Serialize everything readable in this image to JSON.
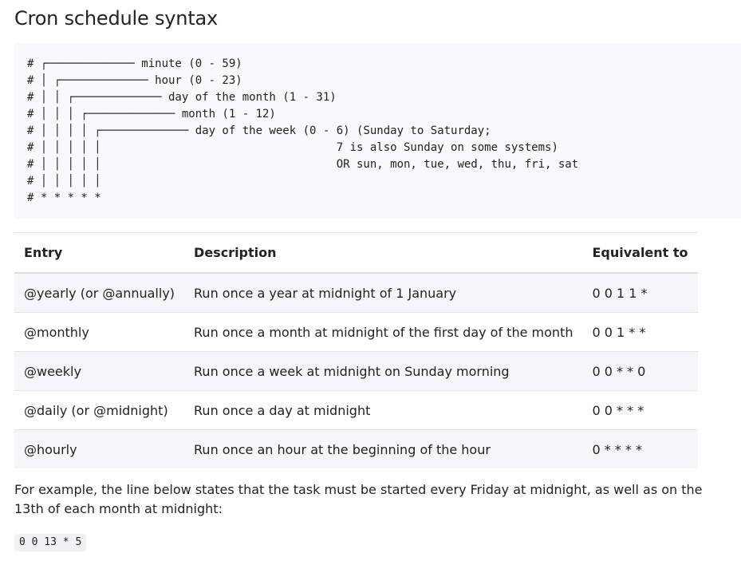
{
  "heading": "Cron schedule syntax",
  "code_block": {
    "lines": [
      "# ┌───────────── minute (0 - 59)",
      "# │ ┌───────────── hour (0 - 23)",
      "# │ │ ┌───────────── day of the month (1 - 31)",
      "# │ │ │ ┌───────────── month (1 - 12)",
      "# │ │ │ │ ┌───────────── day of the week (0 - 6) (Sunday to Saturday;",
      "# │ │ │ │ │                                   7 is also Sunday on some systems)",
      "# │ │ │ │ │                                   OR sun, mon, tue, wed, thu, fri, sat",
      "# │ │ │ │ │",
      "# * * * * *"
    ]
  },
  "table": {
    "headers": [
      "Entry",
      "Description",
      "Equivalent to"
    ],
    "rows": [
      [
        "@yearly (or @annually)",
        "Run once a year at midnight of 1 January",
        "0 0 1 1 *"
      ],
      [
        "@monthly",
        "Run once a month at midnight of the first day of the month",
        "0 0 1 * *"
      ],
      [
        "@weekly",
        "Run once a week at midnight on Sunday morning",
        "0 0 * * 0"
      ],
      [
        "@daily (or @midnight)",
        "Run once a day at midnight",
        "0 0 * * *"
      ],
      [
        "@hourly",
        "Run once an hour at the beginning of the hour",
        "0 * * * *"
      ]
    ]
  },
  "example_paragraph": "For example, the line below states that the task must be started every Friday at midnight, as well as on the 13th of each month at midnight:",
  "example_code": "0 0 13 * 5",
  "colors": {
    "code_background": "#f8f9fa",
    "table_stripe": "#f5f6f7",
    "text": "#222222"
  }
}
